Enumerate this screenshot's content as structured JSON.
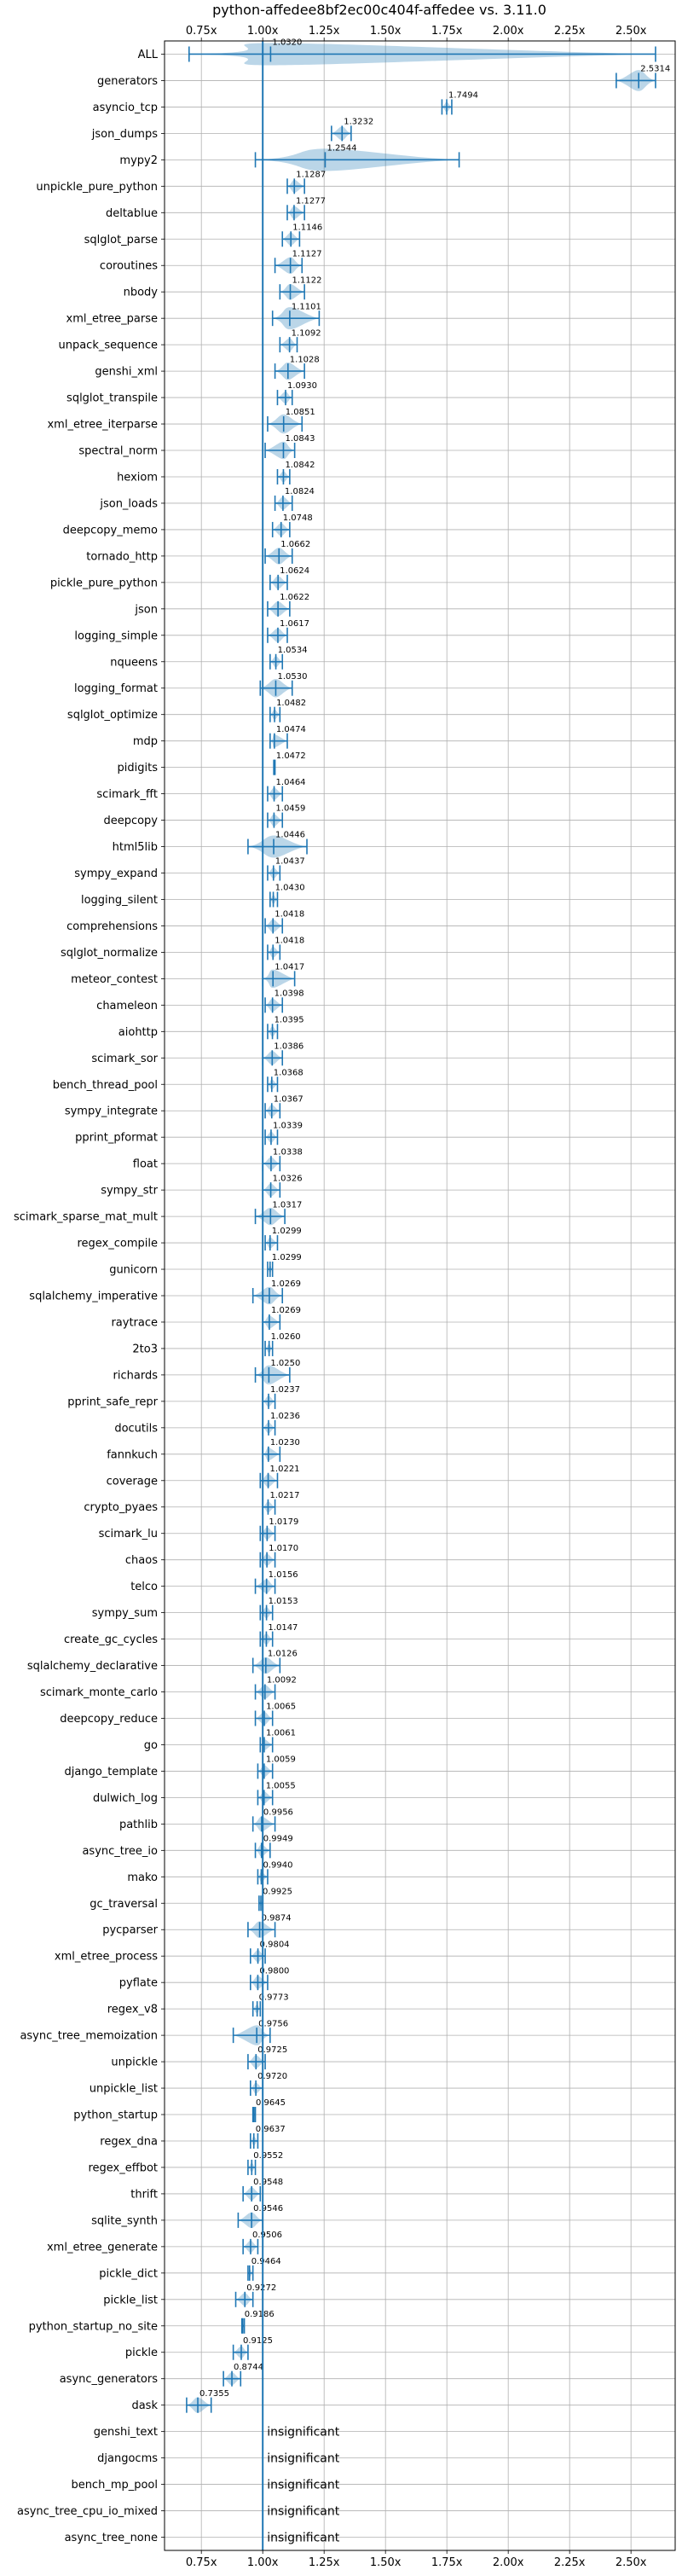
{
  "chart_data": {
    "type": "violin",
    "title": "python-affedee8bf2ec00c404f-affedee vs. 3.11.0",
    "xlabel": "",
    "ylabel": "",
    "xlim": [
      0.6,
      2.68
    ],
    "xticks": [
      0.75,
      1.0,
      1.25,
      1.5,
      1.75,
      2.0,
      2.25,
      2.5
    ],
    "xtick_labels": [
      "0.75x",
      "1.00x",
      "1.25x",
      "1.50x",
      "1.75x",
      "2.00x",
      "2.25x",
      "2.50x"
    ],
    "reference_line": 1.0,
    "grid": true,
    "colors": {
      "series": "#1f77b4",
      "fill": "#1f77b4",
      "grid": "#b0b0b0"
    },
    "insignificant_text": "insignificant",
    "benchmarks": [
      {
        "name": "ALL",
        "value": 1.032,
        "label": "1.0320",
        "min": 0.7,
        "max": 2.6
      },
      {
        "name": "generators",
        "value": 2.5314,
        "label": "2.5314",
        "min": 2.44,
        "max": 2.6
      },
      {
        "name": "asyncio_tcp",
        "value": 1.7494,
        "label": "1.7494",
        "min": 1.73,
        "max": 1.77
      },
      {
        "name": "json_dumps",
        "value": 1.3232,
        "label": "1.3232",
        "min": 1.28,
        "max": 1.36
      },
      {
        "name": "mypy2",
        "value": 1.2544,
        "label": "1.2544",
        "min": 0.97,
        "max": 1.8
      },
      {
        "name": "unpickle_pure_python",
        "value": 1.1287,
        "label": "1.1287",
        "min": 1.1,
        "max": 1.17
      },
      {
        "name": "deltablue",
        "value": 1.1277,
        "label": "1.1277",
        "min": 1.1,
        "max": 1.17
      },
      {
        "name": "sqlglot_parse",
        "value": 1.1146,
        "label": "1.1146",
        "min": 1.08,
        "max": 1.15
      },
      {
        "name": "coroutines",
        "value": 1.1127,
        "label": "1.1127",
        "min": 1.05,
        "max": 1.16
      },
      {
        "name": "nbody",
        "value": 1.1122,
        "label": "1.1122",
        "min": 1.07,
        "max": 1.17
      },
      {
        "name": "xml_etree_parse",
        "value": 1.1101,
        "label": "1.1101",
        "min": 1.04,
        "max": 1.23
      },
      {
        "name": "unpack_sequence",
        "value": 1.1092,
        "label": "1.1092",
        "min": 1.07,
        "max": 1.14
      },
      {
        "name": "genshi_xml",
        "value": 1.1028,
        "label": "1.1028",
        "min": 1.05,
        "max": 1.17
      },
      {
        "name": "sqlglot_transpile",
        "value": 1.093,
        "label": "1.0930",
        "min": 1.06,
        "max": 1.12
      },
      {
        "name": "xml_etree_iterparse",
        "value": 1.0851,
        "label": "1.0851",
        "min": 1.02,
        "max": 1.16
      },
      {
        "name": "spectral_norm",
        "value": 1.0843,
        "label": "1.0843",
        "min": 1.01,
        "max": 1.13
      },
      {
        "name": "hexiom",
        "value": 1.0842,
        "label": "1.0842",
        "min": 1.06,
        "max": 1.11
      },
      {
        "name": "json_loads",
        "value": 1.0824,
        "label": "1.0824",
        "min": 1.05,
        "max": 1.12
      },
      {
        "name": "deepcopy_memo",
        "value": 1.0748,
        "label": "1.0748",
        "min": 1.04,
        "max": 1.11
      },
      {
        "name": "tornado_http",
        "value": 1.0662,
        "label": "1.0662",
        "min": 1.01,
        "max": 1.12
      },
      {
        "name": "pickle_pure_python",
        "value": 1.0624,
        "label": "1.0624",
        "min": 1.03,
        "max": 1.1
      },
      {
        "name": "json",
        "value": 1.0622,
        "label": "1.0622",
        "min": 1.02,
        "max": 1.11
      },
      {
        "name": "logging_simple",
        "value": 1.0617,
        "label": "1.0617",
        "min": 1.02,
        "max": 1.1
      },
      {
        "name": "nqueens",
        "value": 1.0534,
        "label": "1.0534",
        "min": 1.03,
        "max": 1.08
      },
      {
        "name": "logging_format",
        "value": 1.053,
        "label": "1.0530",
        "min": 0.99,
        "max": 1.12
      },
      {
        "name": "sqlglot_optimize",
        "value": 1.0482,
        "label": "1.0482",
        "min": 1.03,
        "max": 1.07
      },
      {
        "name": "mdp",
        "value": 1.0474,
        "label": "1.0474",
        "min": 1.03,
        "max": 1.1
      },
      {
        "name": "pidigits",
        "value": 1.0472,
        "label": "1.0472",
        "min": 1.045,
        "max": 1.05
      },
      {
        "name": "scimark_fft",
        "value": 1.0464,
        "label": "1.0464",
        "min": 1.02,
        "max": 1.08
      },
      {
        "name": "deepcopy",
        "value": 1.0459,
        "label": "1.0459",
        "min": 1.02,
        "max": 1.08
      },
      {
        "name": "html5lib",
        "value": 1.0446,
        "label": "1.0446",
        "min": 0.94,
        "max": 1.18
      },
      {
        "name": "sympy_expand",
        "value": 1.0437,
        "label": "1.0437",
        "min": 1.02,
        "max": 1.07
      },
      {
        "name": "logging_silent",
        "value": 1.043,
        "label": "1.0430",
        "min": 1.03,
        "max": 1.06
      },
      {
        "name": "comprehensions",
        "value": 1.0418,
        "label": "1.0418",
        "min": 1.01,
        "max": 1.08
      },
      {
        "name": "sqlglot_normalize",
        "value": 1.0418,
        "label": "1.0418",
        "min": 1.02,
        "max": 1.07
      },
      {
        "name": "meteor_contest",
        "value": 1.0417,
        "label": "1.0417",
        "min": 1.0,
        "max": 1.13
      },
      {
        "name": "chameleon",
        "value": 1.0398,
        "label": "1.0398",
        "min": 1.01,
        "max": 1.08
      },
      {
        "name": "aiohttp",
        "value": 1.0395,
        "label": "1.0395",
        "min": 1.02,
        "max": 1.06
      },
      {
        "name": "scimark_sor",
        "value": 1.0386,
        "label": "1.0386",
        "min": 1.0,
        "max": 1.08
      },
      {
        "name": "bench_thread_pool",
        "value": 1.0368,
        "label": "1.0368",
        "min": 1.02,
        "max": 1.06
      },
      {
        "name": "sympy_integrate",
        "value": 1.0367,
        "label": "1.0367",
        "min": 1.01,
        "max": 1.07
      },
      {
        "name": "pprint_pformat",
        "value": 1.0339,
        "label": "1.0339",
        "min": 1.01,
        "max": 1.06
      },
      {
        "name": "float",
        "value": 1.0338,
        "label": "1.0338",
        "min": 1.0,
        "max": 1.07
      },
      {
        "name": "sympy_str",
        "value": 1.0326,
        "label": "1.0326",
        "min": 1.0,
        "max": 1.07
      },
      {
        "name": "scimark_sparse_mat_mult",
        "value": 1.0317,
        "label": "1.0317",
        "min": 0.97,
        "max": 1.09
      },
      {
        "name": "regex_compile",
        "value": 1.0299,
        "label": "1.0299",
        "min": 1.01,
        "max": 1.06
      },
      {
        "name": "gunicorn",
        "value": 1.0299,
        "label": "1.0299",
        "min": 1.02,
        "max": 1.04
      },
      {
        "name": "sqlalchemy_imperative",
        "value": 1.0269,
        "label": "1.0269",
        "min": 0.96,
        "max": 1.08
      },
      {
        "name": "raytrace",
        "value": 1.0269,
        "label": "1.0269",
        "min": 1.0,
        "max": 1.07
      },
      {
        "name": "2to3",
        "value": 1.026,
        "label": "1.0260",
        "min": 1.01,
        "max": 1.04
      },
      {
        "name": "richards",
        "value": 1.025,
        "label": "1.0250",
        "min": 0.97,
        "max": 1.11
      },
      {
        "name": "pprint_safe_repr",
        "value": 1.0237,
        "label": "1.0237",
        "min": 1.0,
        "max": 1.05
      },
      {
        "name": "docutils",
        "value": 1.0236,
        "label": "1.0236",
        "min": 1.0,
        "max": 1.05
      },
      {
        "name": "fannkuch",
        "value": 1.023,
        "label": "1.0230",
        "min": 1.0,
        "max": 1.07
      },
      {
        "name": "coverage",
        "value": 1.0221,
        "label": "1.0221",
        "min": 0.99,
        "max": 1.06
      },
      {
        "name": "crypto_pyaes",
        "value": 1.0217,
        "label": "1.0217",
        "min": 1.0,
        "max": 1.05
      },
      {
        "name": "scimark_lu",
        "value": 1.0179,
        "label": "1.0179",
        "min": 0.99,
        "max": 1.05
      },
      {
        "name": "chaos",
        "value": 1.017,
        "label": "1.0170",
        "min": 0.99,
        "max": 1.05
      },
      {
        "name": "telco",
        "value": 1.0156,
        "label": "1.0156",
        "min": 0.97,
        "max": 1.05
      },
      {
        "name": "sympy_sum",
        "value": 1.0153,
        "label": "1.0153",
        "min": 0.99,
        "max": 1.04
      },
      {
        "name": "create_gc_cycles",
        "value": 1.0147,
        "label": "1.0147",
        "min": 0.99,
        "max": 1.04
      },
      {
        "name": "sqlalchemy_declarative",
        "value": 1.0126,
        "label": "1.0126",
        "min": 0.96,
        "max": 1.07
      },
      {
        "name": "scimark_monte_carlo",
        "value": 1.0092,
        "label": "1.0092",
        "min": 0.97,
        "max": 1.05
      },
      {
        "name": "deepcopy_reduce",
        "value": 1.0065,
        "label": "1.0065",
        "min": 0.97,
        "max": 1.04
      },
      {
        "name": "go",
        "value": 1.0061,
        "label": "1.0061",
        "min": 0.99,
        "max": 1.04
      },
      {
        "name": "django_template",
        "value": 1.0059,
        "label": "1.0059",
        "min": 0.98,
        "max": 1.04
      },
      {
        "name": "dulwich_log",
        "value": 1.0055,
        "label": "1.0055",
        "min": 0.98,
        "max": 1.04
      },
      {
        "name": "pathlib",
        "value": 0.9956,
        "label": "0.9956",
        "min": 0.96,
        "max": 1.05
      },
      {
        "name": "async_tree_io",
        "value": 0.9949,
        "label": "0.9949",
        "min": 0.97,
        "max": 1.03
      },
      {
        "name": "mako",
        "value": 0.994,
        "label": "0.9940",
        "min": 0.98,
        "max": 1.02
      },
      {
        "name": "gc_traversal",
        "value": 0.9925,
        "label": "0.9925",
        "min": 0.985,
        "max": 1.0
      },
      {
        "name": "pycparser",
        "value": 0.9874,
        "label": "0.9874",
        "min": 0.94,
        "max": 1.05
      },
      {
        "name": "xml_etree_process",
        "value": 0.9804,
        "label": "0.9804",
        "min": 0.95,
        "max": 1.01
      },
      {
        "name": "pyflate",
        "value": 0.98,
        "label": "0.9800",
        "min": 0.95,
        "max": 1.02
      },
      {
        "name": "regex_v8",
        "value": 0.9773,
        "label": "0.9773",
        "min": 0.96,
        "max": 0.99
      },
      {
        "name": "async_tree_memoization",
        "value": 0.9756,
        "label": "0.9756",
        "min": 0.88,
        "max": 1.03
      },
      {
        "name": "unpickle",
        "value": 0.9725,
        "label": "0.9725",
        "min": 0.94,
        "max": 1.01
      },
      {
        "name": "unpickle_list",
        "value": 0.972,
        "label": "0.9720",
        "min": 0.95,
        "max": 1.0
      },
      {
        "name": "python_startup",
        "value": 0.9645,
        "label": "0.9645",
        "min": 0.96,
        "max": 0.97
      },
      {
        "name": "regex_dna",
        "value": 0.9637,
        "label": "0.9637",
        "min": 0.95,
        "max": 0.98
      },
      {
        "name": "regex_effbot",
        "value": 0.9552,
        "label": "0.9552",
        "min": 0.94,
        "max": 0.97
      },
      {
        "name": "thrift",
        "value": 0.9548,
        "label": "0.9548",
        "min": 0.92,
        "max": 0.99
      },
      {
        "name": "sqlite_synth",
        "value": 0.9546,
        "label": "0.9546",
        "min": 0.9,
        "max": 1.0
      },
      {
        "name": "xml_etree_generate",
        "value": 0.9506,
        "label": "0.9506",
        "min": 0.92,
        "max": 0.98
      },
      {
        "name": "pickle_dict",
        "value": 0.9464,
        "label": "0.9464",
        "min": 0.94,
        "max": 0.96
      },
      {
        "name": "pickle_list",
        "value": 0.9272,
        "label": "0.9272",
        "min": 0.89,
        "max": 0.96
      },
      {
        "name": "python_startup_no_site",
        "value": 0.9186,
        "label": "0.9186",
        "min": 0.915,
        "max": 0.925
      },
      {
        "name": "pickle",
        "value": 0.9125,
        "label": "0.9125",
        "min": 0.88,
        "max": 0.94
      },
      {
        "name": "async_generators",
        "value": 0.8744,
        "label": "0.8744",
        "min": 0.84,
        "max": 0.91
      },
      {
        "name": "dask",
        "value": 0.7355,
        "label": "0.7355",
        "min": 0.69,
        "max": 0.79
      },
      {
        "name": "genshi_text",
        "value": null,
        "label": "insignificant"
      },
      {
        "name": "djangocms",
        "value": null,
        "label": "insignificant"
      },
      {
        "name": "bench_mp_pool",
        "value": null,
        "label": "insignificant"
      },
      {
        "name": "async_tree_cpu_io_mixed",
        "value": null,
        "label": "insignificant"
      },
      {
        "name": "async_tree_none",
        "value": null,
        "label": "insignificant"
      }
    ]
  }
}
